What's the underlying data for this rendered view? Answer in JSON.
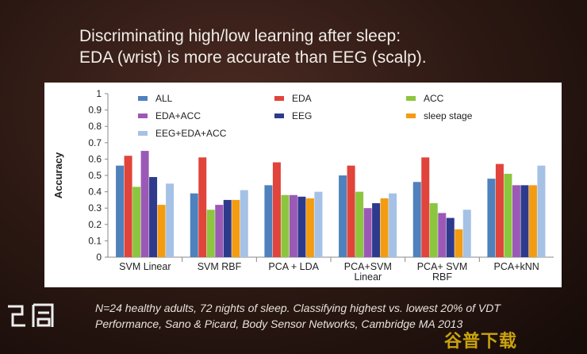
{
  "slide": {
    "title_lines": [
      "Discriminating high/low learning after sleep:",
      "EDA (wrist) is more accurate than EEG (scalp)."
    ],
    "footer_lines": [
      "N=24 healthy adults, 72 nights of sleep.  Classifying highest vs. lowest 20% of VDT",
      "Performance, Sano & Picard, Body Sensor Networks, Cambridge MA 2013"
    ],
    "logo_text": "飞局",
    "watermark_text": "谷普下载"
  },
  "chart_data": {
    "type": "bar",
    "ylabel": "Accuracy",
    "xlabel": "",
    "ylim": [
      0,
      1
    ],
    "yticks": [
      0,
      0.1,
      0.2,
      0.3,
      0.4,
      0.5,
      0.6,
      0.7,
      0.8,
      0.9,
      1
    ],
    "ytick_labels": [
      "0",
      "0.1",
      "0.2",
      "0.3",
      "0.4",
      "0.5",
      "0.6",
      "0.7",
      "0.8",
      "0.9",
      "1"
    ],
    "grid": false,
    "legend_position": "top",
    "categories": [
      "SVM Linear",
      "SVM RBF",
      "PCA + LDA",
      "PCA+SVM\nLinear",
      "PCA+ SVM\nRBF",
      "PCA+kNN"
    ],
    "series": [
      {
        "name": "ALL",
        "color": "#4f81bd",
        "values": [
          0.56,
          0.39,
          0.44,
          0.5,
          0.46,
          0.48
        ]
      },
      {
        "name": "EDA",
        "color": "#e0443a",
        "values": [
          0.62,
          0.61,
          0.58,
          0.56,
          0.61,
          0.57
        ]
      },
      {
        "name": "ACC",
        "color": "#8cc63f",
        "values": [
          0.43,
          0.29,
          0.38,
          0.4,
          0.33,
          0.51
        ]
      },
      {
        "name": "EDA+ACC",
        "color": "#9b59b6",
        "values": [
          0.65,
          0.32,
          0.38,
          0.3,
          0.27,
          0.44
        ]
      },
      {
        "name": "EEG",
        "color": "#2e3a8c",
        "values": [
          0.49,
          0.35,
          0.37,
          0.33,
          0.24,
          0.44
        ]
      },
      {
        "name": "sleep stage",
        "color": "#f39c12",
        "values": [
          0.32,
          0.35,
          0.36,
          0.36,
          0.17,
          0.44
        ]
      },
      {
        "name": "EEG+EDA+ACC",
        "color": "#a5c1e6",
        "values": [
          0.45,
          0.41,
          0.4,
          0.39,
          0.29,
          0.56
        ]
      }
    ]
  }
}
